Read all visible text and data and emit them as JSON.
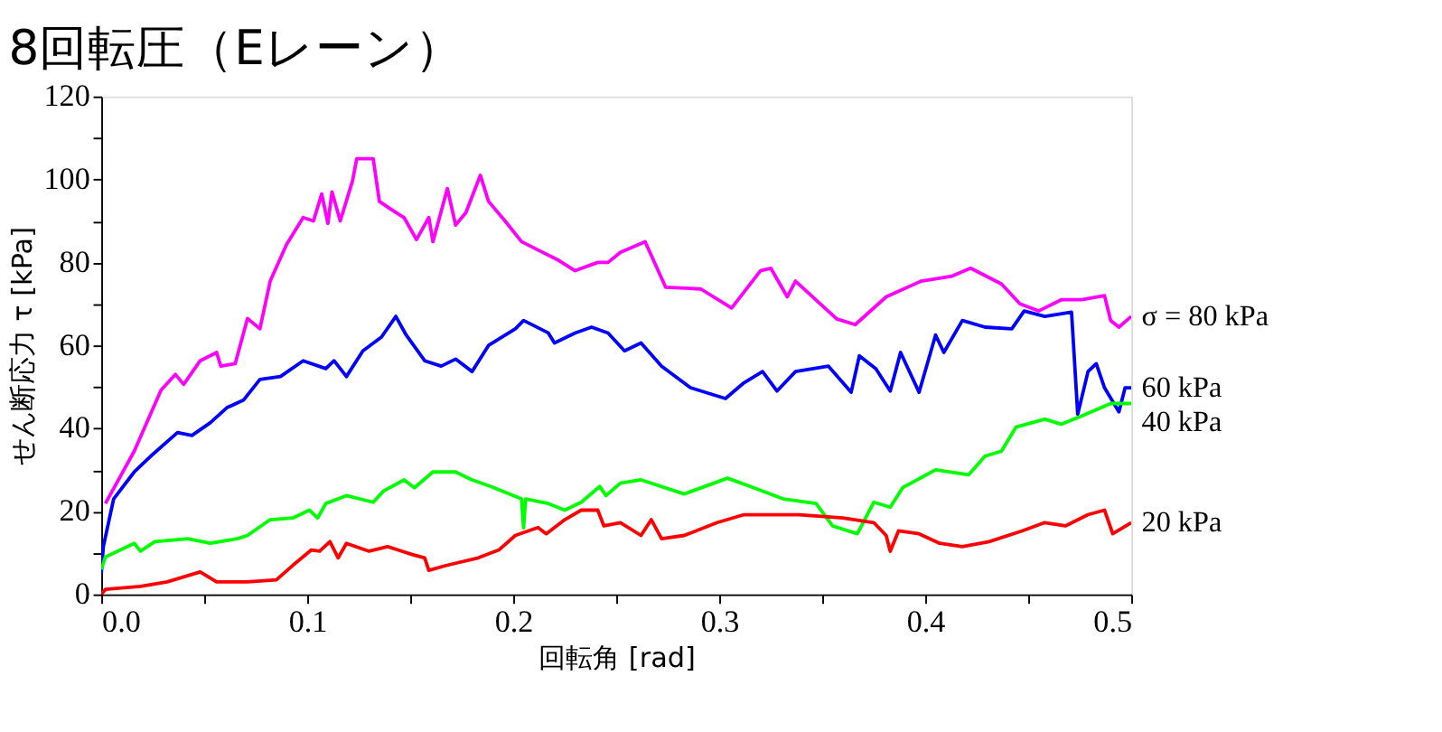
{
  "chart_data": {
    "type": "line",
    "title": "8回転圧（Eレーン）",
    "xlabel": "回転角  [rad]",
    "ylabel": "せん断応力  τ [kPa]",
    "xlim": [
      0,
      0.5
    ],
    "ylim": [
      0,
      120
    ],
    "xticks": [
      {
        "value": 0,
        "label": "0.0"
      },
      {
        "value": 0.05,
        "label": null
      },
      {
        "value": 0.1,
        "label": "0.1"
      },
      {
        "value": 0.15,
        "label": null
      },
      {
        "value": 0.2,
        "label": "0.2"
      },
      {
        "value": 0.25,
        "label": null
      },
      {
        "value": 0.3,
        "label": "0.3"
      },
      {
        "value": 0.35,
        "label": null
      },
      {
        "value": 0.4,
        "label": "0.4"
      },
      {
        "value": 0.45,
        "label": null
      },
      {
        "value": 0.5,
        "label": "0.5"
      }
    ],
    "yticks": [
      0,
      {
        "value": 10,
        "label": null
      },
      20,
      {
        "value": 30,
        "label": null
      },
      40,
      {
        "value": 50,
        "label": null
      },
      60,
      {
        "value": 70,
        "label": null
      },
      80,
      {
        "value": 90,
        "label": null
      },
      100,
      {
        "value": 110,
        "label": null
      },
      120
    ],
    "grid": false,
    "legend": false,
    "marker": "none",
    "line_style": "solid",
    "series": [
      {
        "name": "σ = 80 kPa",
        "color": "#ff00ff",
        "x": [
          0.002,
          0.016,
          0.029,
          0.036,
          0.04,
          0.048,
          0.056,
          0.058,
          0.065,
          0.071,
          0.077,
          0.082,
          0.09,
          0.098,
          0.103,
          0.107,
          0.11,
          0.112,
          0.116,
          0.122,
          0.124,
          0.132,
          0.135,
          0.14,
          0.147,
          0.153,
          0.159,
          0.161,
          0.168,
          0.172,
          0.177,
          0.184,
          0.188,
          0.196,
          0.204,
          0.212,
          0.222,
          0.23,
          0.241,
          0.246,
          0.252,
          0.264,
          0.274,
          0.291,
          0.306,
          0.32,
          0.325,
          0.333,
          0.337,
          0.357,
          0.366,
          0.381,
          0.398,
          0.413,
          0.422,
          0.437,
          0.446,
          0.455,
          0.466,
          0.476,
          0.487,
          0.49,
          0.494,
          0.5
        ],
        "values": [
          21.9,
          34.5,
          49.2,
          53,
          50.6,
          56.3,
          58.3,
          55,
          55.6,
          66.5,
          64,
          75.5,
          84.4,
          90.8,
          90,
          96.5,
          89.4,
          97,
          90,
          99.7,
          105,
          105,
          94.7,
          93,
          90.8,
          85.5,
          90.8,
          85,
          97.8,
          89,
          92,
          101,
          94.7,
          90,
          85,
          83,
          80.5,
          78,
          80,
          80,
          82.4,
          85,
          74,
          73.6,
          69,
          78,
          78.6,
          71.7,
          75.5,
          66.4,
          65,
          71.7,
          75.5,
          76.7,
          78.6,
          74.8,
          70,
          68.3,
          71,
          71,
          72,
          66,
          64.4,
          67
        ]
      },
      {
        "name": "60 kPa",
        "color": "#0000ff",
        "x": [
          0,
          0.001,
          0.006,
          0.016,
          0.024,
          0.037,
          0.044,
          0.053,
          0.061,
          0.069,
          0.077,
          0.087,
          0.098,
          0.109,
          0.113,
          0.119,
          0.127,
          0.136,
          0.143,
          0.148,
          0.157,
          0.165,
          0.172,
          0.18,
          0.188,
          0.201,
          0.205,
          0.217,
          0.22,
          0.23,
          0.238,
          0.246,
          0.254,
          0.262,
          0.272,
          0.286,
          0.303,
          0.312,
          0.321,
          0.328,
          0.337,
          0.353,
          0.364,
          0.368,
          0.376,
          0.383,
          0.388,
          0.397,
          0.405,
          0.409,
          0.418,
          0.429,
          0.442,
          0.448,
          0.458,
          0.471,
          0.474,
          0.479,
          0.483,
          0.487,
          0.494,
          0.497,
          0.5
        ],
        "values": [
          5,
          11.5,
          23,
          29.5,
          33.3,
          39,
          38.3,
          41.4,
          45,
          46.8,
          51.8,
          52.5,
          56.3,
          54.4,
          56.3,
          52.5,
          58.7,
          62,
          67,
          62.5,
          56.3,
          55,
          56.7,
          53.7,
          60,
          64,
          66,
          63,
          60.6,
          63,
          64.4,
          63,
          58.7,
          60.6,
          55,
          49.8,
          47.2,
          51,
          53.7,
          49,
          53.7,
          55,
          48.7,
          57.5,
          54.4,
          49,
          58.3,
          48.7,
          62.5,
          58.3,
          66,
          64.4,
          64,
          68.3,
          67,
          68,
          43.4,
          53.7,
          55.6,
          49.8,
          44,
          49.8,
          49.8
        ]
      },
      {
        "name": "40 kPa",
        "color": "#00ff00",
        "x": [
          0,
          0.002,
          0.016,
          0.019,
          0.026,
          0.042,
          0.053,
          0.066,
          0.071,
          0.082,
          0.093,
          0.101,
          0.105,
          0.109,
          0.119,
          0.132,
          0.137,
          0.147,
          0.152,
          0.161,
          0.172,
          0.18,
          0.189,
          0.204,
          0.205,
          0.206,
          0.217,
          0.225,
          0.233,
          0.242,
          0.245,
          0.252,
          0.262,
          0.283,
          0.304,
          0.315,
          0.331,
          0.347,
          0.355,
          0.367,
          0.375,
          0.383,
          0.389,
          0.405,
          0.421,
          0.429,
          0.437,
          0.444,
          0.458,
          0.466,
          0.476,
          0.49,
          0.5
        ],
        "values": [
          6,
          9,
          12.3,
          10.4,
          12.7,
          13.4,
          12.3,
          13.4,
          14.2,
          18,
          18.4,
          20.3,
          18.4,
          21.9,
          23.8,
          22.2,
          24.9,
          27.6,
          25.7,
          29.5,
          29.5,
          27.6,
          26,
          23,
          16,
          23,
          21.9,
          20.3,
          22.2,
          26,
          23.8,
          26.8,
          27.6,
          24.2,
          28,
          26,
          23,
          21.9,
          16.5,
          14.6,
          22.2,
          21,
          25.7,
          30,
          28.8,
          33.3,
          34.5,
          40.3,
          42.2,
          41,
          43,
          46,
          46
        ]
      },
      {
        "name": "20 kPa",
        "color": "#ff0000",
        "x": [
          0,
          0.002,
          0.019,
          0.032,
          0.048,
          0.056,
          0.071,
          0.085,
          0.093,
          0.102,
          0.106,
          0.111,
          0.115,
          0.119,
          0.13,
          0.139,
          0.146,
          0.151,
          0.157,
          0.159,
          0.167,
          0.183,
          0.193,
          0.201,
          0.212,
          0.216,
          0.225,
          0.233,
          0.241,
          0.244,
          0.252,
          0.262,
          0.267,
          0.272,
          0.283,
          0.299,
          0.312,
          0.339,
          0.36,
          0.375,
          0.381,
          0.383,
          0.387,
          0.397,
          0.407,
          0.418,
          0.431,
          0.447,
          0.458,
          0.468,
          0.479,
          0.487,
          0.491,
          0.5
        ],
        "values": [
          0,
          1.2,
          1.9,
          3,
          5.4,
          3,
          3,
          3.5,
          7,
          10.7,
          10.4,
          12.7,
          8.8,
          12.3,
          10.4,
          11.5,
          10.4,
          9.6,
          8.8,
          5.8,
          6.9,
          8.8,
          10.7,
          14.2,
          16.1,
          14.6,
          18,
          20.3,
          20.3,
          16.5,
          17.3,
          14.2,
          18,
          13.4,
          14.2,
          17.3,
          19.2,
          19.2,
          18.4,
          17.3,
          14.2,
          10.4,
          15.3,
          14.6,
          12.3,
          11.5,
          12.7,
          15.3,
          17.3,
          16.5,
          19.2,
          20.3,
          14.6,
          17.3
        ]
      }
    ]
  }
}
